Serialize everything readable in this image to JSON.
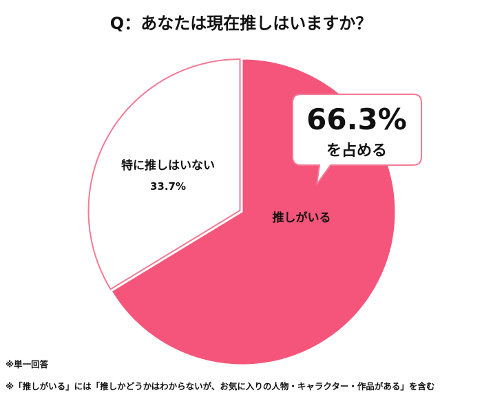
{
  "title": "Q：あなたは現在推しはいますか？",
  "chart_data": {
    "type": "pie",
    "title": "Q：あなたは現在推しはいますか？",
    "slices": [
      {
        "label": "推しがいる",
        "value": 66.3,
        "color": "#F5557A"
      },
      {
        "label": "特に推しはいない",
        "value": 33.7,
        "value_label": "33.7%",
        "color": "#FFFFFF"
      }
    ],
    "callout": {
      "value": "66.3%",
      "text": "を占める",
      "border_color": "#F27A95"
    }
  },
  "notes": [
    "※単一回答",
    "※「推しがいる」には「推しかどうかはわからないが、お気に入りの人物・キャラクター・作品がある」を含む"
  ]
}
